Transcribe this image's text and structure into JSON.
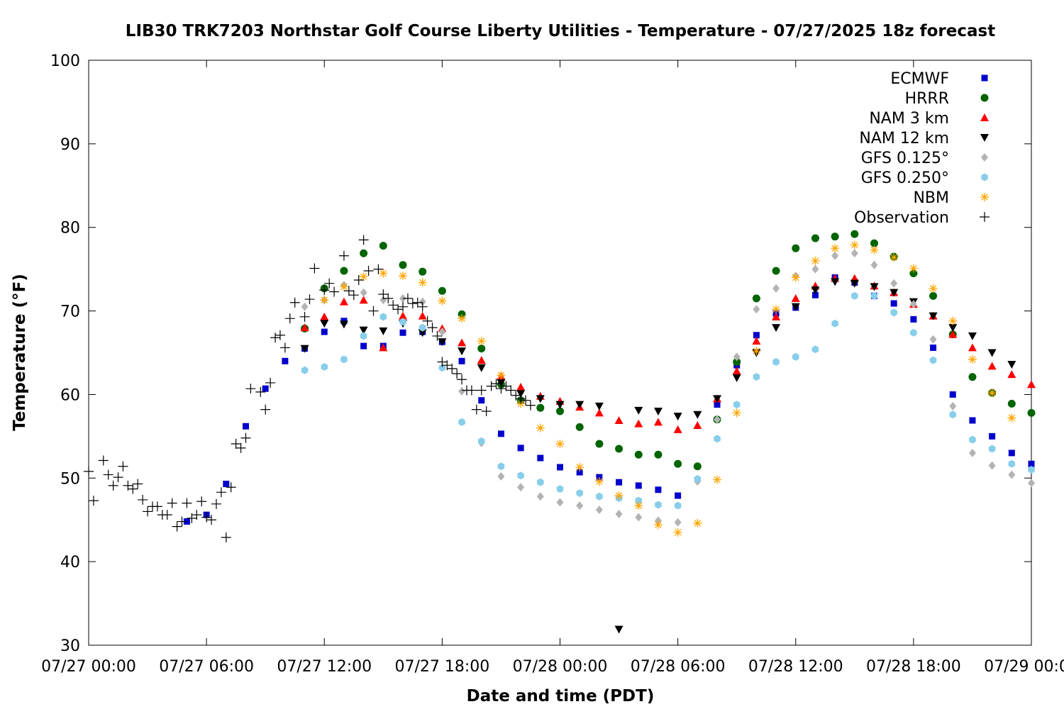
{
  "chart_data": {
    "type": "scatter",
    "title": "LIB30 TRK7203 Northstar Golf Course Liberty Utilities - Temperature - 07/27/2025 18z forecast",
    "xlabel": "Date and time (PDT)",
    "ylabel": "Temperature (°F)",
    "xlim": [
      0,
      48
    ],
    "ylim": [
      30,
      100
    ],
    "x_unit": "hours since 07/27 00:00 PDT",
    "x_ticks": [
      {
        "value": 0,
        "label": "07/27 00:00"
      },
      {
        "value": 6,
        "label": "07/27 06:00"
      },
      {
        "value": 12,
        "label": "07/27 12:00"
      },
      {
        "value": 18,
        "label": "07/27 18:00"
      },
      {
        "value": 24,
        "label": "07/28 00:00"
      },
      {
        "value": 30,
        "label": "07/28 06:00"
      },
      {
        "value": 36,
        "label": "07/28 12:00"
      },
      {
        "value": 42,
        "label": "07/28 18:00"
      },
      {
        "value": 48,
        "label": "07/29 00:00"
      }
    ],
    "y_ticks": [
      30,
      40,
      50,
      60,
      70,
      80,
      90,
      100
    ],
    "grid": false,
    "legend_position": "top-right",
    "series": [
      {
        "name": "ECMWF",
        "marker": "square",
        "color": "#0000cc",
        "x": [
          5,
          6,
          7,
          8,
          9,
          10,
          11,
          12,
          13,
          14,
          15,
          16,
          17,
          18,
          19,
          20,
          21,
          22,
          23,
          24,
          25,
          26,
          27,
          28,
          29,
          30,
          31,
          32,
          33,
          34,
          35,
          36,
          37,
          38,
          39,
          40,
          41,
          42,
          43,
          44,
          45,
          46,
          47,
          48
        ],
        "y": [
          44.8,
          45.6,
          49.3,
          56.2,
          60.7,
          64.0,
          65.5,
          67.5,
          68.8,
          65.8,
          65.8,
          67.4,
          67.5,
          66.3,
          64.0,
          59.3,
          55.3,
          53.6,
          52.4,
          51.3,
          50.7,
          50.1,
          49.5,
          49.1,
          48.6,
          47.9,
          null,
          58.8,
          63.5,
          67.1,
          69.7,
          70.4,
          71.9,
          74.0,
          73.4,
          71.8,
          70.9,
          69.0,
          65.6,
          60.0,
          56.9,
          55.0,
          53.0,
          51.7
        ]
      },
      {
        "name": "HRRR",
        "marker": "circle",
        "color": "#006400",
        "x": [
          11,
          12,
          13,
          14,
          15,
          16,
          17,
          18,
          19,
          20,
          21,
          22,
          23,
          24,
          25,
          26,
          27,
          28,
          29,
          30,
          31,
          32,
          33,
          34,
          35,
          36,
          37,
          38,
          39,
          40,
          41,
          42,
          43,
          44,
          45,
          46,
          47,
          48
        ],
        "y": [
          67.9,
          72.7,
          74.8,
          76.9,
          77.8,
          75.5,
          74.7,
          72.4,
          69.6,
          65.5,
          61.2,
          59.3,
          58.4,
          58.0,
          56.1,
          54.1,
          53.5,
          52.8,
          52.8,
          51.7,
          51.4,
          57.0,
          63.9,
          71.5,
          74.8,
          77.5,
          78.7,
          78.9,
          79.2,
          78.1,
          76.5,
          74.5,
          71.8,
          67.2,
          62.1,
          60.2,
          58.9,
          57.8
        ]
      },
      {
        "name": "NAM 3 km",
        "marker": "triangle-up",
        "color": "#ff0000",
        "x": [
          11,
          12,
          13,
          14,
          15,
          16,
          17,
          18,
          19,
          20,
          21,
          22,
          23,
          24,
          25,
          26,
          27,
          28,
          29,
          30,
          31,
          32,
          33,
          34,
          35,
          36,
          37,
          38,
          39,
          40,
          41,
          42,
          43,
          44,
          45,
          46,
          47,
          48
        ],
        "y": [
          68.0,
          69.3,
          71.1,
          71.3,
          65.6,
          69.4,
          69.4,
          67.9,
          66.2,
          64.1,
          62.2,
          60.9,
          59.8,
          59.2,
          58.5,
          57.8,
          56.9,
          56.5,
          56.7,
          55.8,
          56.3,
          59.5,
          62.8,
          66.4,
          69.3,
          71.5,
          73.0,
          73.9,
          73.9,
          73.0,
          72.2,
          70.8,
          69.4,
          67.2,
          65.6,
          63.4,
          62.4,
          61.2
        ]
      },
      {
        "name": "NAM 12 km",
        "marker": "triangle-down",
        "color": "#000000",
        "x": [
          11,
          12,
          13,
          14,
          15,
          16,
          17,
          18,
          19,
          20,
          21,
          22,
          23,
          24,
          25,
          26,
          27,
          28,
          29,
          30,
          31,
          32,
          33,
          34,
          35,
          36,
          37,
          38,
          39,
          40,
          41,
          42,
          43,
          44,
          45,
          46,
          47
        ],
        "y": [
          65.5,
          68.5,
          68.4,
          67.7,
          67.6,
          68.5,
          67.4,
          66.3,
          65.2,
          63.2,
          61.4,
          60.1,
          59.5,
          58.8,
          58.8,
          58.6,
          31.9,
          58.1,
          58.0,
          57.4,
          57.6,
          59.5,
          62.0,
          65.0,
          68.0,
          70.5,
          72.5,
          73.5,
          73.3,
          72.9,
          72.2,
          71.1,
          69.4,
          68.0,
          67.0,
          65.0,
          63.6
        ]
      },
      {
        "name": "GFS 0.125°",
        "marker": "diamond",
        "color": "#b3b3b3",
        "x": [
          11,
          12,
          13,
          14,
          15,
          16,
          17,
          18,
          19,
          20,
          21,
          22,
          23,
          24,
          25,
          26,
          27,
          28,
          29,
          30,
          31,
          32,
          33,
          34,
          35,
          36,
          37,
          38,
          39,
          40,
          41,
          42,
          43,
          44,
          45,
          46,
          47,
          48
        ],
        "y": [
          70.5,
          71.3,
          73.1,
          72.2,
          71.3,
          71.5,
          71.1,
          67.5,
          60.4,
          54.2,
          50.2,
          48.9,
          47.8,
          47.1,
          46.7,
          46.2,
          45.7,
          45.3,
          44.9,
          44.7,
          49.6,
          57.0,
          64.5,
          70.2,
          72.7,
          74.2,
          75.0,
          76.6,
          76.9,
          75.5,
          73.3,
          70.8,
          66.6,
          58.6,
          53.0,
          51.5,
          50.4,
          49.4
        ]
      },
      {
        "name": "GFS 0.250°",
        "marker": "hexagon",
        "color": "#87ceeb",
        "x": [
          11,
          12,
          13,
          14,
          15,
          16,
          17,
          18,
          19,
          20,
          21,
          22,
          23,
          24,
          25,
          26,
          27,
          28,
          29,
          30,
          31,
          32,
          33,
          34,
          35,
          36,
          37,
          38,
          39,
          40,
          41,
          42,
          43,
          44,
          45,
          46,
          47,
          48
        ],
        "y": [
          62.9,
          63.3,
          64.2,
          67.0,
          69.3,
          68.7,
          68.0,
          63.2,
          56.7,
          54.4,
          51.4,
          50.3,
          49.5,
          48.7,
          48.2,
          47.8,
          47.6,
          47.3,
          46.8,
          46.7,
          49.9,
          54.7,
          58.8,
          62.1,
          63.9,
          64.5,
          65.4,
          68.5,
          71.8,
          71.8,
          69.8,
          67.4,
          64.1,
          57.6,
          54.6,
          53.5,
          51.7,
          51.0
        ]
      },
      {
        "name": "NBM",
        "marker": "star",
        "color": "#ffa500",
        "x": [
          12,
          13,
          14,
          15,
          16,
          17,
          18,
          19,
          20,
          21,
          22,
          23,
          24,
          25,
          26,
          27,
          28,
          29,
          30,
          31,
          32,
          33,
          34,
          35,
          36,
          37,
          38,
          39,
          40,
          41,
          42,
          43,
          44,
          45,
          46,
          47
        ],
        "y": [
          71.3,
          72.9,
          74.1,
          74.5,
          74.2,
          73.4,
          71.2,
          69.1,
          66.4,
          62.3,
          58.9,
          56.0,
          54.1,
          51.3,
          49.6,
          47.9,
          46.7,
          44.4,
          43.5,
          44.6,
          49.8,
          57.8,
          65.2,
          70.2,
          74.0,
          76.0,
          77.5,
          77.9,
          77.3,
          76.4,
          75.1,
          72.7,
          68.8,
          64.2,
          60.2,
          57.2
        ]
      },
      {
        "name": "Observation",
        "marker": "plus",
        "color": "#000000",
        "x": [
          0,
          0.25,
          0.75,
          1,
          1.25,
          1.5,
          1.75,
          2,
          2.25,
          2.5,
          2.75,
          3,
          3.25,
          3.5,
          3.75,
          4,
          4.25,
          4.5,
          4.75,
          5,
          5.25,
          5.5,
          5.75,
          6,
          6.25,
          6.5,
          6.75,
          7,
          7.25,
          7.5,
          7.75,
          8,
          8.25,
          8.75,
          9,
          9.25,
          9.5,
          9.75,
          10,
          10.25,
          10.5,
          11,
          11.25,
          11.5,
          12,
          12.25,
          12.5,
          13,
          13.25,
          13.5,
          13.75,
          14,
          14.25,
          14.5,
          14.75,
          15,
          15.25,
          15.5,
          15.75,
          16,
          16.25,
          16.5,
          16.75,
          17,
          17.25,
          17.5,
          17.75,
          18,
          18.25,
          18.5,
          18.75,
          19,
          19.25,
          19.5,
          19.75,
          20,
          20.25,
          20.5,
          20.75,
          21,
          21.25,
          21.5,
          21.75,
          22,
          22.25,
          22.5
        ],
        "y": [
          50.8,
          47.3,
          52.1,
          50.4,
          49.1,
          50.1,
          51.4,
          49.1,
          48.7,
          49.3,
          47.4,
          46.0,
          46.6,
          46.6,
          45.6,
          45.6,
          47.0,
          44.2,
          44.8,
          47.0,
          45.2,
          45.6,
          47.2,
          45.3,
          45.0,
          46.9,
          48.3,
          42.9,
          48.9,
          54.1,
          53.6,
          54.8,
          60.7,
          60.3,
          58.2,
          61.4,
          66.8,
          67.1,
          65.6,
          69.1,
          71.0,
          69.3,
          71.4,
          75.1,
          72.5,
          73.3,
          72.3,
          76.6,
          72.4,
          71.9,
          73.7,
          78.5,
          74.8,
          70.0,
          75.0,
          72.0,
          71.5,
          70.7,
          70.2,
          70.5,
          71.5,
          70.9,
          71.0,
          70.5,
          68.8,
          68.0,
          67.0,
          63.9,
          63.5,
          63.1,
          62.5,
          61.8,
          60.5,
          60.5,
          58.2,
          60.5,
          58.0,
          61.0,
          61.3,
          60.7,
          61.0,
          60.5,
          59.9,
          59.5,
          59.3,
          58.7
        ]
      }
    ]
  }
}
